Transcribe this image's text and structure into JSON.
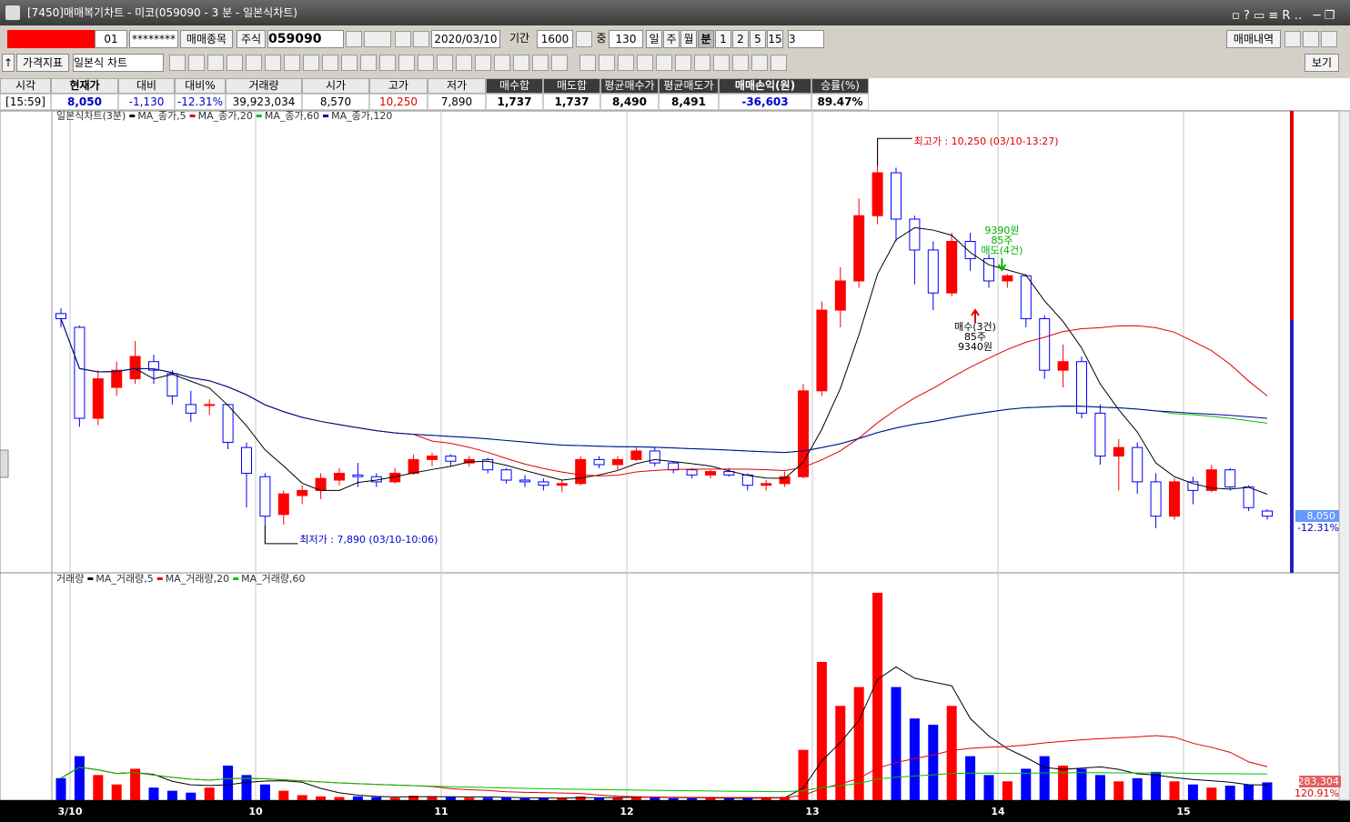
{
  "window": {
    "title": "[7450]매매복기차트 - 미코(059090 - 3 분 - 일본식차트)"
  },
  "toolbar": {
    "account": "01",
    "password": "********",
    "trade_item_btn": "매매종목",
    "market": "주식",
    "code": "059090",
    "date": "2020/03/10",
    "period_label": "기간",
    "period": "1600",
    "mid_label": "중",
    "mid": "130",
    "intervals": [
      "일",
      "주",
      "월",
      "분",
      "1",
      "2",
      "5",
      "15"
    ],
    "interval_value": "3",
    "trades_btn": "매매내역",
    "indicator_btn": "가격지표",
    "chart_style": "일본식 차트",
    "view_btn": "보기"
  },
  "quote": {
    "headers": [
      "시각",
      "현재가",
      "대비",
      "대비%",
      "거래량",
      "시가",
      "고가",
      "저가",
      "매수합",
      "매도합",
      "평균매수가",
      "평균매도가",
      "매매손익(원)",
      "승률(%)"
    ],
    "values": [
      "[15:59]",
      "8,050",
      "-1,130",
      "-12.31%",
      "39,923,034",
      "8,570",
      "10,250",
      "7,890",
      "1,737",
      "1,737",
      "8,490",
      "8,491",
      "-36,603",
      "89.47%"
    ]
  },
  "chart_data": [
    {
      "type": "candlestick",
      "title": "일본식차트(3분)",
      "categories": [
        "3/10",
        null,
        null,
        null,
        null,
        null,
        null,
        null,
        null,
        null,
        "10",
        null,
        null,
        null,
        null,
        null,
        null,
        null,
        null,
        null,
        "11",
        null,
        null,
        null,
        null,
        null,
        null,
        null,
        null,
        null,
        "12",
        null,
        null,
        null,
        null,
        null,
        null,
        null,
        null,
        null,
        "13",
        null,
        null,
        null,
        null,
        null,
        null,
        null,
        null,
        null,
        "14",
        null,
        null,
        null,
        null,
        null,
        null,
        null,
        null,
        null,
        "15",
        null,
        null,
        null,
        null,
        null
      ],
      "open": [
        9230,
        9150,
        8620,
        8800,
        8850,
        8950,
        8880,
        8700,
        8700,
        8700,
        8450,
        8280,
        8060,
        8170,
        8200,
        8260,
        8290,
        8280,
        8250,
        8300,
        8380,
        8400,
        8360,
        8380,
        8320,
        8260,
        8250,
        8230,
        8240,
        8380,
        8350,
        8380,
        8430,
        8360,
        8320,
        8290,
        8310,
        8290,
        8230,
        8240,
        8280,
        8780,
        9250,
        9420,
        9800,
        10050,
        9780,
        9600,
        9350,
        9650,
        9550,
        9420,
        9450,
        9200,
        8900,
        8950,
        8650,
        8400,
        8450,
        8250,
        8050,
        8250,
        8200,
        8320,
        8220,
        8080
      ],
      "high": [
        9260,
        9160,
        8900,
        8950,
        9070,
        8990,
        8900,
        8780,
        8730,
        8700,
        8480,
        8300,
        8200,
        8230,
        8300,
        8330,
        8360,
        8300,
        8330,
        8410,
        8420,
        8410,
        8400,
        8390,
        8330,
        8290,
        8270,
        8260,
        8400,
        8400,
        8400,
        8450,
        8450,
        8370,
        8330,
        8320,
        8330,
        8300,
        8260,
        8310,
        8820,
        9300,
        9500,
        9900,
        10250,
        10080,
        9800,
        9650,
        9700,
        9700,
        9580,
        9460,
        9460,
        9220,
        9050,
        8980,
        8700,
        8500,
        8480,
        8300,
        8270,
        8280,
        8350,
        8330,
        8230,
        8090
      ],
      "low": [
        9150,
        8570,
        8580,
        8750,
        8820,
        8820,
        8700,
        8600,
        8640,
        8440,
        8100,
        7890,
        8000,
        8120,
        8150,
        8230,
        8220,
        8220,
        8240,
        8290,
        8340,
        8340,
        8340,
        8300,
        8240,
        8220,
        8200,
        8190,
        8230,
        8330,
        8320,
        8370,
        8340,
        8300,
        8270,
        8270,
        8280,
        8200,
        8200,
        8220,
        8270,
        8750,
        9150,
        9380,
        9750,
        9650,
        9400,
        9250,
        9330,
        9480,
        9380,
        9380,
        9150,
        8850,
        8800,
        8620,
        8350,
        8200,
        8180,
        7980,
        8030,
        8120,
        8190,
        8200,
        8080,
        8030
      ],
      "close": [
        9200,
        8620,
        8850,
        8900,
        8980,
        8900,
        8750,
        8650,
        8700,
        8480,
        8300,
        8050,
        8180,
        8200,
        8270,
        8300,
        8280,
        8250,
        8300,
        8380,
        8400,
        8370,
        8380,
        8320,
        8260,
        8250,
        8230,
        8240,
        8380,
        8350,
        8380,
        8430,
        8360,
        8320,
        8290,
        8310,
        8290,
        8230,
        8240,
        8280,
        8780,
        9250,
        9420,
        9800,
        10050,
        9780,
        9600,
        9350,
        9650,
        9550,
        9420,
        9450,
        9200,
        8900,
        8950,
        8650,
        8400,
        8450,
        8250,
        8050,
        8250,
        8200,
        8320,
        8220,
        8100,
        8050
      ],
      "ylim": [
        7720,
        10410
      ],
      "up_color": "#ff0000",
      "down_color": "#0000ff",
      "ma": [
        {
          "name": "MA_종가,5",
          "period": 5,
          "color": "#000000"
        },
        {
          "name": "MA_종가,20",
          "period": 20,
          "color": "#e00000"
        },
        {
          "name": "MA_종가,60",
          "period": 60,
          "color": "#00c000"
        },
        {
          "name": "MA_종가,120",
          "period": 120,
          "color": "#0000a0"
        }
      ],
      "high_note": "최고가 : 10,250 (03/10-13:27)",
      "low_note": "최저가 : 7,890 (03/10-10:06)",
      "sell_note": [
        "9390원",
        "85주",
        "매도(4건)"
      ],
      "buy_note": [
        "매수(3건)",
        "85주",
        "9340원"
      ],
      "last_price": "8,050",
      "last_change": "-12.31%"
    },
    {
      "type": "bar",
      "title": "거래량",
      "values": [
        350000,
        700000,
        400000,
        250000,
        500000,
        200000,
        150000,
        120000,
        200000,
        550000,
        400000,
        250000,
        150000,
        80000,
        60000,
        50000,
        60000,
        50000,
        40000,
        70000,
        60000,
        50000,
        40000,
        40000,
        40000,
        30000,
        30000,
        35000,
        60000,
        40000,
        40000,
        60000,
        40000,
        30000,
        30000,
        30000,
        30000,
        40000,
        40000,
        50000,
        800000,
        2200000,
        1500000,
        1800000,
        3300000,
        1800000,
        1300000,
        1200000,
        1500000,
        700000,
        400000,
        300000,
        500000,
        700000,
        550000,
        500000,
        400000,
        300000,
        350000,
        450000,
        300000,
        250000,
        200000,
        230000,
        250000,
        283304
      ],
      "ylim": [
        0,
        3400000
      ],
      "ma": [
        {
          "name": "MA_거래량,5",
          "period": 5,
          "color": "#000000"
        },
        {
          "name": "MA_거래량,20",
          "period": 20,
          "color": "#e00000"
        },
        {
          "name": "MA_거래량,60",
          "period": 60,
          "color": "#00c000"
        }
      ],
      "last_volume": "283,304",
      "last_ratio": "120.91%"
    }
  ]
}
